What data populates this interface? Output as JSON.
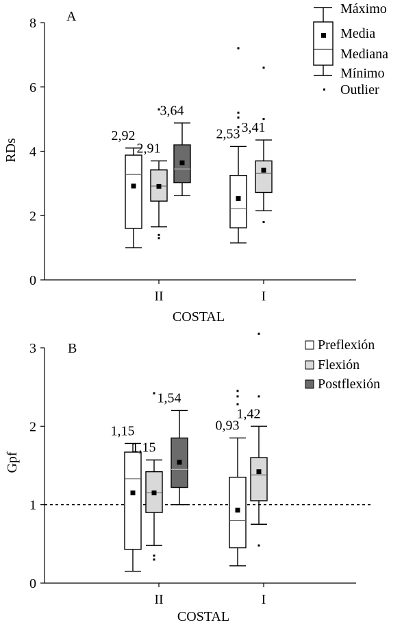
{
  "xlabel": "COSTAL",
  "legend_box": {
    "max": "Máximo",
    "mean": "Media",
    "median": "Mediana",
    "min": "Mínimo",
    "outlier": "Outlier"
  },
  "colors": {
    "Preflexión": "#ffffff",
    "Flexión": "#d9d9d9",
    "Postflexión": "#6b6b6b"
  },
  "chart_data": [
    {
      "type": "box",
      "panel_label": "A",
      "ylabel": "RDs",
      "ylim": [
        0,
        8
      ],
      "yticks": [
        "0",
        "2",
        "4",
        "6",
        "8"
      ],
      "categories": [
        "II",
        "I"
      ],
      "boxes": [
        {
          "category": "II",
          "series": "Preflexión",
          "min": 1.0,
          "q1": 1.6,
          "median": 3.28,
          "q3": 3.88,
          "max": 4.1,
          "mean": 2.92,
          "mean_label": "2,92",
          "outliers": []
        },
        {
          "category": "II",
          "series": "Flexión",
          "min": 1.65,
          "q1": 2.45,
          "median": 2.92,
          "q3": 3.42,
          "max": 3.7,
          "mean": 2.91,
          "mean_label": "2,91",
          "outliers": [
            1.4,
            1.3,
            5.3
          ]
        },
        {
          "category": "II",
          "series": "Postflexión",
          "min": 2.62,
          "q1": 3.02,
          "median": 3.45,
          "q3": 4.2,
          "max": 4.88,
          "mean": 3.64,
          "mean_label": "3,64",
          "outliers": []
        },
        {
          "category": "I",
          "series": "Preflexión",
          "min": 1.15,
          "q1": 1.62,
          "median": 2.22,
          "q3": 3.25,
          "max": 4.15,
          "mean": 2.53,
          "mean_label": "2,53",
          "outliers": [
            4.75,
            5.05,
            5.2,
            7.2
          ]
        },
        {
          "category": "I",
          "series": "Flexión",
          "min": 2.15,
          "q1": 2.72,
          "median": 3.32,
          "q3": 3.7,
          "max": 4.35,
          "mean": 3.41,
          "mean_label": "3,41",
          "outliers": [
            1.8,
            5.0,
            6.6
          ]
        }
      ]
    },
    {
      "type": "box",
      "panel_label": "B",
      "ylabel": "Gpf",
      "ylim": [
        0,
        3
      ],
      "yticks": [
        "0",
        "1",
        "2",
        "3"
      ],
      "reference_line": 1,
      "categories": [
        "II",
        "I"
      ],
      "legend": [
        "Preflexión",
        "Flexión",
        "Postflexión"
      ],
      "boxes": [
        {
          "category": "II",
          "series": "Preflexión",
          "min": 0.15,
          "q1": 0.43,
          "median": 1.33,
          "q3": 1.67,
          "max": 1.78,
          "mean": 1.15,
          "mean_label": "1,15",
          "outliers": []
        },
        {
          "category": "II",
          "series": "Flexión",
          "min": 0.48,
          "q1": 0.9,
          "median": 1.15,
          "q3": 1.42,
          "max": 1.57,
          "mean": 1.15,
          "mean_label": "1,15",
          "outliers": [
            0.3,
            0.35,
            2.42
          ]
        },
        {
          "category": "II",
          "series": "Postflexión",
          "min": 1.0,
          "q1": 1.22,
          "median": 1.45,
          "q3": 1.85,
          "max": 2.2,
          "mean": 1.54,
          "mean_label": "1,54",
          "outliers": []
        },
        {
          "category": "I",
          "series": "Preflexión",
          "min": 0.22,
          "q1": 0.45,
          "median": 0.8,
          "q3": 1.35,
          "max": 1.85,
          "mean": 0.93,
          "mean_label": "0,93",
          "outliers": [
            2.28,
            2.38,
            2.45
          ]
        },
        {
          "category": "I",
          "series": "Flexión",
          "min": 0.75,
          "q1": 1.05,
          "median": 1.38,
          "q3": 1.6,
          "max": 2.0,
          "mean": 1.42,
          "mean_label": "1,42",
          "outliers": [
            0.48,
            2.38,
            3.18
          ]
        }
      ]
    }
  ]
}
